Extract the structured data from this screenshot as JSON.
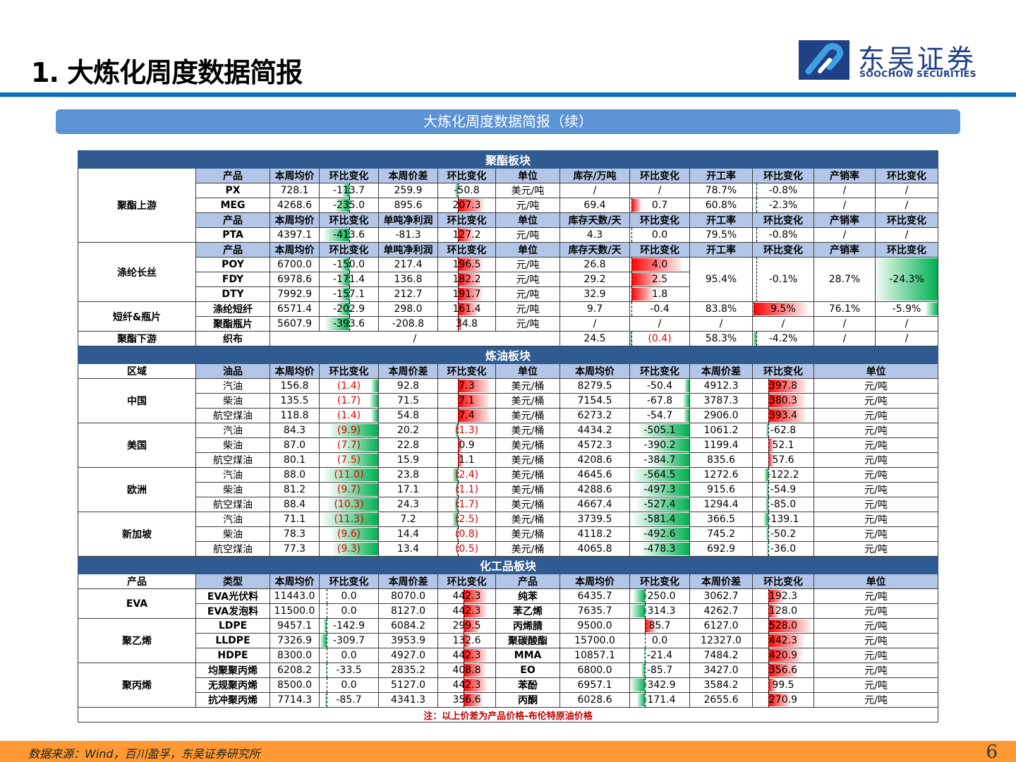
{
  "header": {
    "title": "1. 大炼化周度数据简报",
    "logo_cn": "东吴证券",
    "logo_en": "SOOCHOW SECURITIES",
    "banner": "大炼化周度数据简报（续）"
  },
  "colors": {
    "section_bg": "#2f5b91",
    "header_bg": "#b4c6e7",
    "banner_bg": "#5b93d4",
    "rule": "#0a6ebd",
    "footer_bg": "#ff9933",
    "bar_green": "#00b050",
    "bar_red": "#ff0000"
  },
  "polyester": {
    "title": "聚酯板块",
    "upstream_label": "聚酯上游",
    "hdr1": [
      "产品",
      "本周均价",
      "环比变化",
      "本周价差",
      "环比变化",
      "单位",
      "库存/万吨",
      "环比变化",
      "开工率",
      "环比变化",
      "产销率",
      "环比变化"
    ],
    "hdr2": [
      "产品",
      "本周均价",
      "环比变化",
      "单吨净利润",
      "环比变化",
      "单位",
      "库存天数/天",
      "环比变化",
      "开工率",
      "环比变化",
      "产销率",
      "环比变化"
    ],
    "px": [
      "PX",
      "728.1",
      "-113.7",
      "259.9",
      "-50.8",
      "美元/吨",
      "/",
      "/",
      "78.7%",
      "-0.8%",
      "/",
      "/"
    ],
    "meg": [
      "MEG",
      "4268.6",
      "-235.0",
      "895.6",
      "207.3",
      "元/吨",
      "69.4",
      "0.7",
      "60.8%",
      "-2.3%",
      "/",
      "/"
    ],
    "pta": [
      "PTA",
      "4397.1",
      "-413.6",
      "-81.3",
      "127.2",
      "元/吨",
      "4.3",
      "0.0",
      "79.5%",
      "-0.8%",
      "/",
      "/"
    ],
    "filament_label": "涤纶长丝",
    "filament": [
      [
        "POY",
        "6700.0",
        "-150.0",
        "217.4",
        "196.5",
        "元/吨",
        "26.8",
        "4.0"
      ],
      [
        "FDY",
        "6978.6",
        "-171.4",
        "136.8",
        "182.2",
        "元/吨",
        "29.2",
        "2.5"
      ],
      [
        "DTY",
        "7992.9",
        "-157.1",
        "212.7",
        "191.7",
        "元/吨",
        "32.9",
        "1.8"
      ]
    ],
    "filament_shared": [
      "95.4%",
      "-0.1%",
      "28.7%",
      "-24.3%"
    ],
    "staple_label": "短纤&瓶片",
    "staple": [
      "涤纶短纤",
      "6571.4",
      "-202.9",
      "298.0",
      "161.4",
      "元/吨",
      "9.7",
      "-0.4",
      "83.8%",
      "9.5%",
      "76.1%",
      "-5.9%"
    ],
    "bottle": [
      "聚酯瓶片",
      "5607.9",
      "-393.6",
      "-208.8",
      "34.8",
      "元/吨",
      "/",
      "/",
      "/",
      "/",
      "/",
      "/"
    ],
    "downstream_label": "聚酯下游",
    "fabric": [
      "织布",
      "/",
      "24.5",
      "(0.4)",
      "58.3%",
      "-4.2%",
      "/",
      "/"
    ]
  },
  "refining": {
    "title": "炼油板块",
    "hdr": [
      "区域",
      "油品",
      "本周均价",
      "环比变化",
      "本周价差",
      "环比变化",
      "单位",
      "本周均价",
      "环比变化",
      "本周价差",
      "环比变化",
      "单位"
    ],
    "regions": [
      {
        "name": "中国",
        "rows": [
          [
            "汽油",
            "156.8",
            "(1.4)",
            "92.8",
            "7.3",
            "美元/桶",
            "8279.5",
            "-50.4",
            "4912.3",
            "397.8",
            "元/吨"
          ],
          [
            "柴油",
            "135.5",
            "(1.7)",
            "71.5",
            "7.1",
            "美元/桶",
            "7154.5",
            "-67.8",
            "3787.3",
            "380.3",
            "元/吨"
          ],
          [
            "航空煤油",
            "118.8",
            "(1.4)",
            "54.8",
            "7.4",
            "美元/桶",
            "6273.2",
            "-54.7",
            "2906.0",
            "393.4",
            "元/吨"
          ]
        ]
      },
      {
        "name": "美国",
        "rows": [
          [
            "汽油",
            "84.3",
            "(9.9)",
            "20.2",
            "(1.3)",
            "美元/桶",
            "4434.2",
            "-505.1",
            "1061.2",
            "-62.8",
            "元/吨"
          ],
          [
            "柴油",
            "87.0",
            "(7.7)",
            "22.8",
            "0.9",
            "美元/桶",
            "4572.3",
            "-390.2",
            "1199.4",
            "52.1",
            "元/吨"
          ],
          [
            "航空煤油",
            "80.1",
            "(7.5)",
            "15.9",
            "1.1",
            "美元/桶",
            "4208.6",
            "-384.7",
            "835.6",
            "57.6",
            "元/吨"
          ]
        ]
      },
      {
        "name": "欧洲",
        "rows": [
          [
            "汽油",
            "88.0",
            "(11.0)",
            "23.8",
            "(2.4)",
            "美元/桶",
            "4645.6",
            "-564.5",
            "1272.6",
            "-122.2",
            "元/吨"
          ],
          [
            "柴油",
            "81.2",
            "(9.7)",
            "17.1",
            "(1.1)",
            "美元/桶",
            "4288.6",
            "-497.3",
            "915.6",
            "-54.9",
            "元/吨"
          ],
          [
            "航空煤油",
            "88.4",
            "(10.3)",
            "24.3",
            "(1.7)",
            "美元/桶",
            "4667.4",
            "-527.4",
            "1294.4",
            "-85.0",
            "元/吨"
          ]
        ]
      },
      {
        "name": "新加坡",
        "rows": [
          [
            "汽油",
            "71.1",
            "(11.3)",
            "7.2",
            "(2.5)",
            "美元/桶",
            "3739.5",
            "-581.4",
            "366.5",
            "-139.1",
            "元/吨"
          ],
          [
            "柴油",
            "78.3",
            "(9.6)",
            "14.4",
            "(0.8)",
            "美元/桶",
            "4118.2",
            "-492.6",
            "745.2",
            "-50.2",
            "元/吨"
          ],
          [
            "航空煤油",
            "77.3",
            "(9.3)",
            "13.4",
            "(0.5)",
            "美元/桶",
            "4065.8",
            "-478.3",
            "692.9",
            "-36.0",
            "元/吨"
          ]
        ]
      }
    ]
  },
  "chemicals": {
    "title": "化工品板块",
    "hdr": [
      "产品",
      "类型",
      "本周均价",
      "环比变化",
      "本周价差",
      "环比变化",
      "产品",
      "本周均价",
      "环比变化",
      "本周价差",
      "环比变化",
      "单位"
    ],
    "groups": [
      "EVA",
      "聚乙烯",
      "聚丙烯"
    ],
    "left": [
      [
        "EVA光伏料",
        "11443.0",
        "0.0",
        "8070.0",
        "442.3"
      ],
      [
        "EVA发泡料",
        "11500.0",
        "0.0",
        "8127.0",
        "442.3"
      ],
      [
        "LDPE",
        "9457.1",
        "-142.9",
        "6084.2",
        "299.5"
      ],
      [
        "LLDPE",
        "7326.9",
        "-309.7",
        "3953.9",
        "132.6"
      ],
      [
        "HDPE",
        "8300.0",
        "0.0",
        "4927.0",
        "442.3"
      ],
      [
        "均聚聚丙烯",
        "6208.2",
        "-33.5",
        "2835.2",
        "408.8"
      ],
      [
        "无规聚丙烯",
        "8500.0",
        "0.0",
        "5127.0",
        "442.3"
      ],
      [
        "抗冲聚丙烯",
        "7714.3",
        "-85.7",
        "4341.3",
        "356.6"
      ]
    ],
    "right": [
      [
        "纯苯",
        "6435.7",
        "-250.0",
        "3062.7",
        "192.3",
        "元/吨"
      ],
      [
        "苯乙烯",
        "7635.7",
        "-314.3",
        "4262.7",
        "128.0",
        "元/吨"
      ],
      [
        "丙烯腈",
        "9500.0",
        "85.7",
        "6127.0",
        "528.0",
        "元/吨"
      ],
      [
        "聚碳酸酯",
        "15700.0",
        "0.0",
        "12327.0",
        "442.3",
        "元/吨"
      ],
      [
        "MMA",
        "10857.1",
        "-21.4",
        "7484.2",
        "420.9",
        "元/吨"
      ],
      [
        "EO",
        "6800.0",
        "-85.7",
        "3427.0",
        "356.6",
        "元/吨"
      ],
      [
        "苯酚",
        "6957.1",
        "-342.9",
        "3584.2",
        "99.5",
        "元/吨"
      ],
      [
        "丙酮",
        "6028.6",
        "-171.4",
        "2655.6",
        "270.9",
        "元/吨"
      ]
    ],
    "note": "注：以上价差为产品价格-布伦特原油价格"
  },
  "footer": {
    "source": "数据来源：Wind，百川盈孚，东吴证券研究所",
    "page_number": "6"
  }
}
